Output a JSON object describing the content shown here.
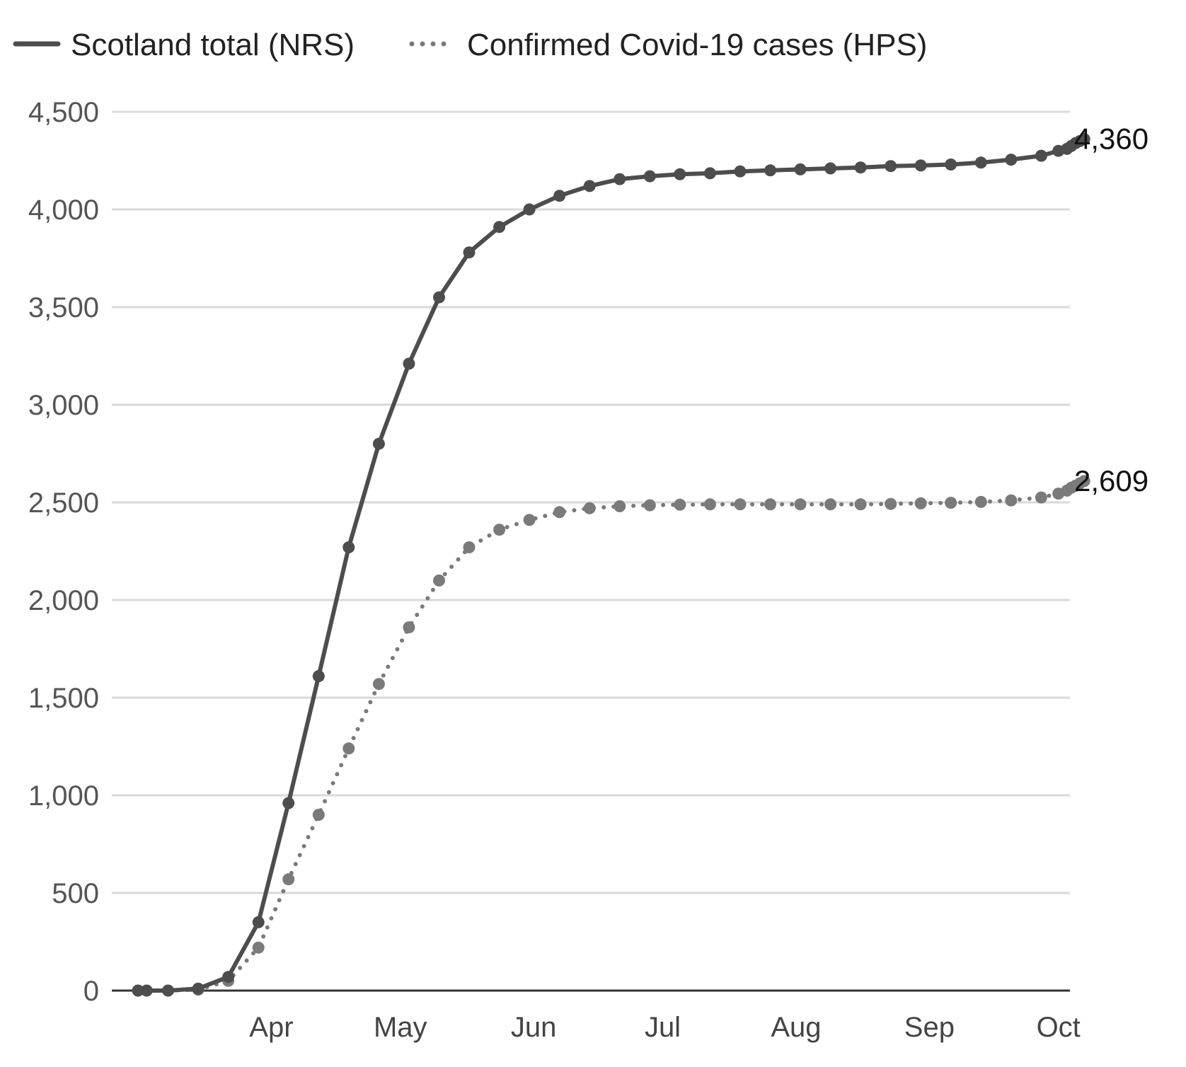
{
  "chart_data": {
    "type": "line",
    "title": "",
    "xlabel": "",
    "ylabel": "",
    "ylim": [
      0,
      4500
    ],
    "y_ticks": [
      "0",
      "500",
      "1,000",
      "1,500",
      "2,000",
      "2,500",
      "3,000",
      "3,500",
      "4,000",
      "4,500"
    ],
    "x_ticks": [
      "Apr",
      "May",
      "Jun",
      "Jul",
      "Aug",
      "Sep",
      "Oct"
    ],
    "grid": true,
    "legend_position": "top-left",
    "x": [
      "2020-03-15",
      "2020-03-17",
      "2020-03-22",
      "2020-03-29",
      "2020-04-05",
      "2020-04-12",
      "2020-04-19",
      "2020-04-26",
      "2020-05-03",
      "2020-05-10",
      "2020-05-17",
      "2020-05-24",
      "2020-05-31",
      "2020-06-07",
      "2020-06-14",
      "2020-06-21",
      "2020-06-28",
      "2020-07-05",
      "2020-07-12",
      "2020-07-19",
      "2020-07-26",
      "2020-08-02",
      "2020-08-09",
      "2020-08-16",
      "2020-08-23",
      "2020-08-30",
      "2020-09-06",
      "2020-09-13",
      "2020-09-20",
      "2020-09-27",
      "2020-10-04",
      "2020-10-11",
      "2020-10-15",
      "2020-10-17",
      "2020-10-18",
      "2020-10-19",
      "2020-10-20",
      "2020-10-21"
    ],
    "series": [
      {
        "name": "Scotland total (NRS)",
        "style": "solid",
        "color": "#4d4d4d",
        "end_label": "4,360",
        "values": [
          0,
          0,
          0,
          10,
          70,
          350,
          960,
          1610,
          2270,
          2800,
          3210,
          3550,
          3780,
          3910,
          4000,
          4070,
          4120,
          4155,
          4170,
          4180,
          4185,
          4195,
          4200,
          4205,
          4210,
          4215,
          4222,
          4225,
          4230,
          4240,
          4255,
          4275,
          4300,
          4310,
          4325,
          4340,
          4350,
          4360
        ]
      },
      {
        "name": "Confirmed Covid-19 cases (HPS)",
        "style": "dotted",
        "color": "#7a7a7a",
        "end_label": "2,609",
        "values": [
          0,
          0,
          0,
          5,
          50,
          220,
          570,
          900,
          1240,
          1570,
          1860,
          2100,
          2270,
          2360,
          2410,
          2450,
          2470,
          2480,
          2485,
          2488,
          2490,
          2490,
          2490,
          2490,
          2490,
          2490,
          2492,
          2495,
          2498,
          2502,
          2510,
          2525,
          2545,
          2560,
          2575,
          2585,
          2598,
          2609
        ]
      }
    ]
  }
}
